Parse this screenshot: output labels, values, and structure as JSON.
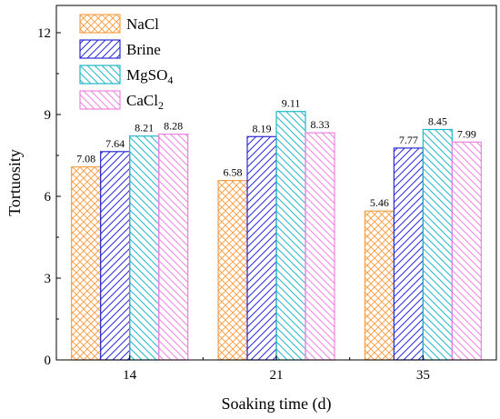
{
  "chart_data": {
    "type": "bar",
    "xlabel": "Soaking time (d)",
    "ylabel": "Tortuosity",
    "ylim": [
      0,
      13
    ],
    "yticks": [
      0,
      3,
      6,
      9,
      12
    ],
    "categories": [
      "14",
      "21",
      "35"
    ],
    "grid": false,
    "legend_position": "top-left",
    "series": [
      {
        "name": "NaCl",
        "legend_main": "NaCl",
        "legend_sub": "",
        "color": "#f5a24a",
        "pattern": "crosshatch",
        "values": [
          7.08,
          6.58,
          5.46
        ],
        "labels": [
          "7.08",
          "6.58",
          "5.46"
        ]
      },
      {
        "name": "Brine",
        "legend_main": "Brine",
        "legend_sub": "",
        "color": "#2b2bd6",
        "pattern": "forward-diagonal",
        "values": [
          7.64,
          8.19,
          7.77
        ],
        "labels": [
          "7.64",
          "8.19",
          "7.77"
        ]
      },
      {
        "name": "MgSO4",
        "legend_main": "MgSO",
        "legend_sub": "4",
        "color": "#22b8c9",
        "pattern": "back-diagonal",
        "values": [
          8.21,
          9.11,
          8.45
        ],
        "labels": [
          "8.21",
          "9.11",
          "8.45"
        ]
      },
      {
        "name": "CaCl2",
        "legend_main": "CaCl",
        "legend_sub": "2",
        "color": "#ee82e0",
        "pattern": "back-diagonal",
        "values": [
          8.28,
          8.33,
          7.99
        ],
        "labels": [
          "8.28",
          "8.33",
          "7.99"
        ]
      }
    ]
  }
}
